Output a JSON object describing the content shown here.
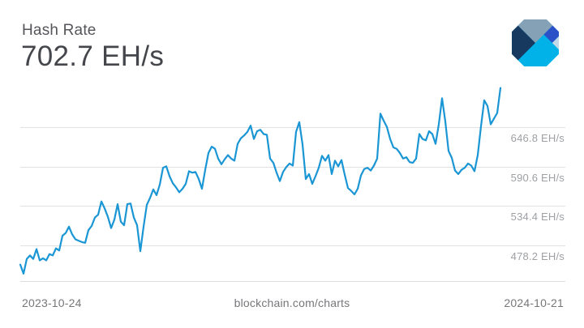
{
  "header": {
    "title": "Hash Rate",
    "current_value": "702.7 EH/s"
  },
  "logo": {
    "name": "blockchain-com-logo",
    "colors": {
      "base_cyan": "#00B2E7",
      "slate": "#85A1B5",
      "royal": "#2B51C8",
      "light": "#C2DAE7",
      "navy": "#17395F"
    }
  },
  "footer": {
    "start_date": "2023-10-24",
    "watermark": "blockchain.com/charts",
    "end_date": "2024-10-21"
  },
  "chart_data": {
    "type": "line",
    "title": "Hash Rate",
    "unit": "EH/s",
    "line_color": "#1A96D5",
    "gridline_color": "#E1E1E1",
    "x_start": "2023-10-24",
    "x_end": "2024-10-21",
    "current_value": 702.7,
    "legend": "none",
    "grid": "horizontal-only",
    "ylim": [
      427,
      713
    ],
    "y_gridlines": [
      {
        "value": 646.8,
        "label": "646.8 EH/s"
      },
      {
        "value": 590.6,
        "label": "590.6 EH/s"
      },
      {
        "value": 534.4,
        "label": "534.4 EH/s"
      },
      {
        "value": 478.2,
        "label": "478.2 EH/s"
      }
    ],
    "series": [
      {
        "name": "Hash Rate (EH/s), evenly spaced 2023-10-24 to 2024-10-21",
        "values": [
          451,
          438,
          459,
          464,
          459,
          473,
          457,
          460,
          457,
          466,
          464,
          474,
          471,
          492,
          496,
          505,
          494,
          487,
          485,
          483,
          482,
          500,
          506,
          518,
          522,
          541,
          531,
          519,
          503,
          515,
          537,
          512,
          507,
          537,
          538,
          518,
          507,
          470,
          505,
          536,
          546,
          558,
          550,
          565,
          589,
          591,
          577,
          567,
          561,
          554,
          559,
          566,
          584,
          582,
          583,
          573,
          559,
          586,
          610,
          619,
          616,
          602,
          594,
          601,
          607,
          602,
          599,
          623,
          631,
          635,
          640,
          649,
          630,
          641,
          643,
          637,
          636,
          602,
          596,
          582,
          570,
          583,
          590,
          595,
          592,
          640,
          654,
          622,
          573,
          580,
          566,
          577,
          589,
          606,
          599,
          607,
          580,
          599,
          591,
          600,
          579,
          560,
          556,
          551,
          559,
          578,
          587,
          589,
          585,
          592,
          602,
          666,
          656,
          647,
          630,
          618,
          616,
          610,
          602,
          604,
          597,
          596,
          602,
          637,
          630,
          628,
          641,
          637,
          623,
          651,
          688,
          655,
          613,
          603,
          585,
          580,
          586,
          589,
          595,
          592,
          584,
          607,
          648,
          685,
          677,
          651,
          659,
          667,
          702.7
        ]
      }
    ]
  }
}
